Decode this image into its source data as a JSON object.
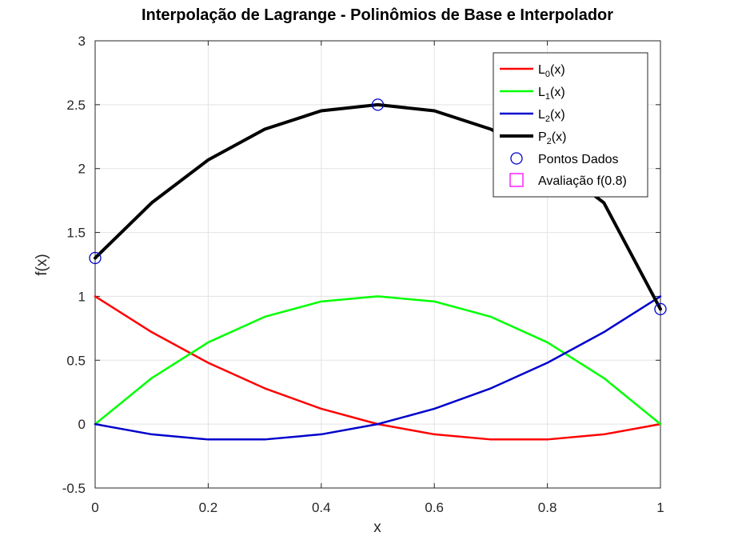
{
  "chart_data": {
    "type": "line",
    "title": "Interpolação de Lagrange - Polinômios de Base e Interpolador",
    "xlabel": "x",
    "ylabel": "f(x)",
    "xlim": [
      0,
      1
    ],
    "ylim": [
      -0.5,
      3
    ],
    "xticks": [
      0,
      0.2,
      0.4,
      0.6,
      0.8,
      1
    ],
    "yticks": [
      -0.5,
      0,
      0.5,
      1,
      1.5,
      2,
      2.5,
      3
    ],
    "grid": true,
    "legend_position": "top-right",
    "x": [
      0,
      0.1,
      0.2,
      0.3,
      0.4,
      0.5,
      0.6,
      0.7,
      0.8,
      0.9,
      1.0
    ],
    "series": [
      {
        "name": "L0(x)",
        "label_main": "L",
        "label_sub": "0",
        "label_tail": "(x)",
        "color": "#ff0000",
        "width": 2.5,
        "values": [
          1,
          0.72,
          0.48,
          0.28,
          0.12,
          0,
          -0.08,
          -0.12,
          -0.12,
          -0.08,
          0
        ]
      },
      {
        "name": "L1(x)",
        "label_main": "L",
        "label_sub": "1",
        "label_tail": "(x)",
        "color": "#00ff00",
        "width": 2.5,
        "values": [
          0,
          0.36,
          0.64,
          0.84,
          0.96,
          1,
          0.96,
          0.84,
          0.64,
          0.36,
          0
        ]
      },
      {
        "name": "L2(x)",
        "label_main": "L",
        "label_sub": "2",
        "label_tail": "(x)",
        "color": "#0000cc",
        "width": 2.5,
        "values": [
          0,
          -0.08,
          -0.12,
          -0.12,
          -0.08,
          0,
          0.12,
          0.28,
          0.48,
          0.72,
          1
        ]
      },
      {
        "name": "P2(x)",
        "label_main": "P",
        "label_sub": "2",
        "label_tail": "(x)",
        "color": "#000000",
        "width": 4,
        "values": [
          1.3,
          1.732,
          2.068,
          2.308,
          2.452,
          2.5,
          2.452,
          2.308,
          2.068,
          1.732,
          0.9
        ]
      }
    ],
    "points": {
      "name": "Pontos Dados",
      "color": "#0000cc",
      "x": [
        0,
        0.5,
        1
      ],
      "y": [
        1.3,
        2.5,
        0.9
      ]
    },
    "evaluation": {
      "name": "Avaliação f(0.8)",
      "color": "#ff00ff"
    }
  }
}
